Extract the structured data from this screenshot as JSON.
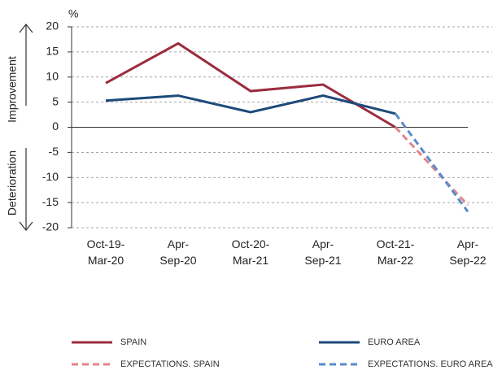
{
  "chart_data": {
    "type": "line",
    "y_unit": "%",
    "annotations": [
      "Improvement",
      "Deterioration"
    ],
    "categories": [
      "Oct-19-\nMar-20",
      "Apr-\nSep-20",
      "Oct-20-\nMar-21",
      "Apr-\nSep-21",
      "Oct-21-\nMar-22",
      "Apr-\nSep-22"
    ],
    "series": [
      {
        "name": "SPAIN",
        "color": "#9b2c3f",
        "dashed": false,
        "values": [
          8.8,
          16.7,
          7.2,
          8.5,
          0,
          null
        ]
      },
      {
        "name": "EURO AREA",
        "color": "#1c4a7a",
        "dashed": false,
        "values": [
          5.3,
          6.3,
          3.0,
          6.3,
          2.7,
          null
        ]
      },
      {
        "name": "EXPECTATIONS. SPAIN",
        "color": "#e3848c",
        "dashed": true,
        "values": [
          null,
          null,
          null,
          null,
          0,
          -15.5
        ]
      },
      {
        "name": "EXPECTATIONS. EURO AREA",
        "color": "#5a8bc9",
        "dashed": true,
        "values": [
          null,
          null,
          null,
          null,
          2.7,
          -16.8
        ]
      }
    ],
    "ylim": [
      -20,
      20
    ],
    "yticks": [
      -20,
      -15,
      -10,
      -5,
      0,
      5,
      10,
      15,
      20
    ],
    "grid": true,
    "legend": "bottom"
  }
}
